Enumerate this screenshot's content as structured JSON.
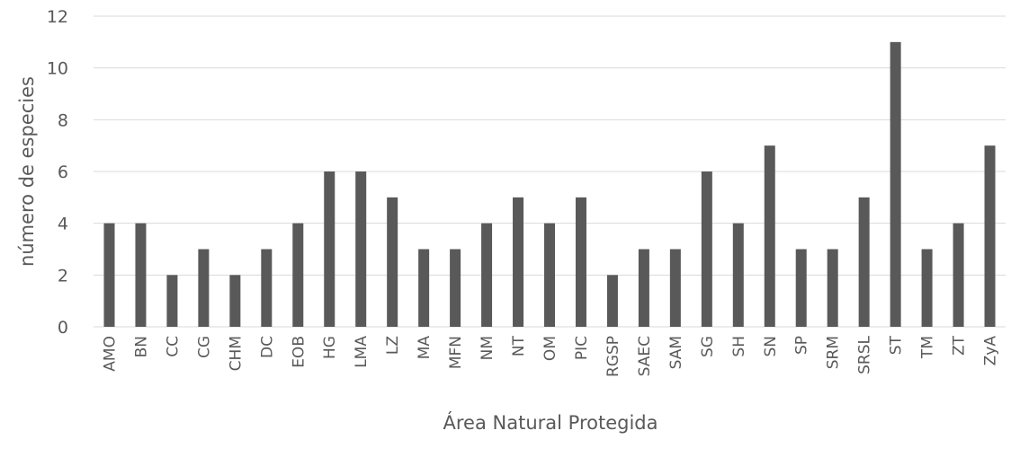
{
  "chart_data": {
    "type": "bar",
    "title": "",
    "xlabel": "Área Natural Protegida",
    "ylabel": "número de especies",
    "ylim": [
      0,
      12
    ],
    "yticks": [
      0,
      2,
      4,
      6,
      8,
      10,
      12
    ],
    "grid": true,
    "legend": "none",
    "bar_color": "#595959",
    "grid_color": "#d9d9d9",
    "categories": [
      "AMO",
      "BN",
      "CC",
      "CG",
      "CHM",
      "DC",
      "EOB",
      "HG",
      "LMA",
      "LZ",
      "MA",
      "MFN",
      "NM",
      "NT",
      "OM",
      "PIC",
      "RGSP",
      "SAEC",
      "SAM",
      "SG",
      "SH",
      "SN",
      "SP",
      "SRM",
      "SRSL",
      "ST",
      "TM",
      "ZT",
      "ZyA"
    ],
    "values": [
      4,
      4,
      2,
      3,
      2,
      3,
      4,
      6,
      6,
      5,
      3,
      3,
      4,
      5,
      4,
      5,
      2,
      3,
      3,
      6,
      4,
      7,
      3,
      3,
      5,
      11,
      3,
      4,
      7
    ]
  }
}
